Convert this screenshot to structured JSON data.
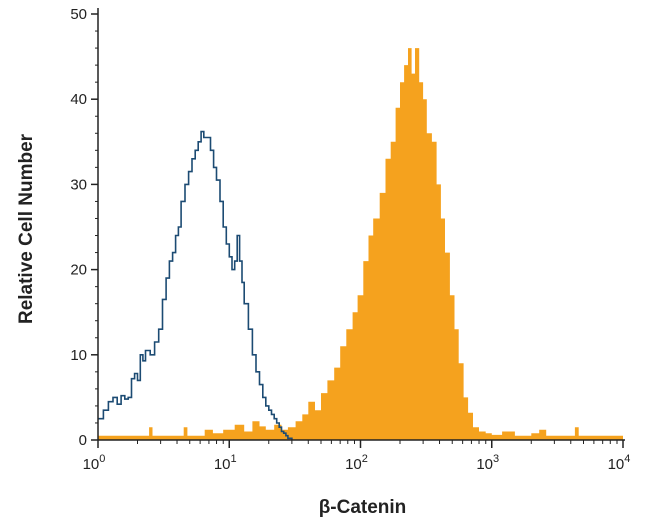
{
  "chart_data": {
    "type": "histogram",
    "xlabel": "β-Catenin",
    "ylabel": "Relative Cell Number",
    "x_scale": "log",
    "xlim": [
      1,
      10000
    ],
    "ylim": [
      0,
      50
    ],
    "x_ticks": [
      {
        "value": 1,
        "label": "10",
        "exp": "0"
      },
      {
        "value": 10,
        "label": "10",
        "exp": "1"
      },
      {
        "value": 100,
        "label": "10",
        "exp": "2"
      },
      {
        "value": 1000,
        "label": "10",
        "exp": "3"
      },
      {
        "value": 10000,
        "label": "10",
        "exp": "4"
      }
    ],
    "y_ticks": [
      0,
      10,
      20,
      30,
      40,
      50
    ],
    "grid": false,
    "legend": "none",
    "series": [
      {
        "style": "filled",
        "color": "#F5A21E",
        "points": [
          [
            1.0,
            0.5
          ],
          [
            2.3,
            0.5
          ],
          [
            2.45,
            1.5
          ],
          [
            2.6,
            0.5
          ],
          [
            4.3,
            0.5
          ],
          [
            4.5,
            1.5
          ],
          [
            4.8,
            0.5
          ],
          [
            6.5,
            1.2
          ],
          [
            7.5,
            0.8
          ],
          [
            9.0,
            1.2
          ],
          [
            11,
            1.8
          ],
          [
            13,
            1.0
          ],
          [
            15,
            2.2
          ],
          [
            17,
            1.6
          ],
          [
            19,
            1.2
          ],
          [
            22,
            1.8
          ],
          [
            25,
            1.2
          ],
          [
            28,
            1.5
          ],
          [
            32,
            2.2
          ],
          [
            36,
            3.0
          ],
          [
            40,
            4.5
          ],
          [
            45,
            3.5
          ],
          [
            50,
            5.5
          ],
          [
            56,
            7.0
          ],
          [
            63,
            8.5
          ],
          [
            70,
            11
          ],
          [
            78,
            13
          ],
          [
            87,
            15
          ],
          [
            95,
            17
          ],
          [
            105,
            21
          ],
          [
            115,
            24
          ],
          [
            125,
            26
          ],
          [
            140,
            29
          ],
          [
            155,
            33
          ],
          [
            170,
            35
          ],
          [
            185,
            39
          ],
          [
            200,
            42
          ],
          [
            215,
            44
          ],
          [
            230,
            46
          ],
          [
            245,
            43
          ],
          [
            260,
            46
          ],
          [
            280,
            42
          ],
          [
            300,
            40
          ],
          [
            320,
            36
          ],
          [
            350,
            35
          ],
          [
            380,
            30
          ],
          [
            410,
            26
          ],
          [
            440,
            22
          ],
          [
            480,
            17
          ],
          [
            520,
            13
          ],
          [
            560,
            9
          ],
          [
            610,
            5
          ],
          [
            660,
            3.2
          ],
          [
            720,
            1.5
          ],
          [
            800,
            1.0
          ],
          [
            900,
            0.8
          ],
          [
            1000,
            0.6
          ],
          [
            1200,
            1.0
          ],
          [
            1500,
            0.5
          ],
          [
            2000,
            0.8
          ],
          [
            2300,
            1.2
          ],
          [
            2600,
            0.5
          ],
          [
            3500,
            0.5
          ],
          [
            4300,
            1.5
          ],
          [
            4600,
            0.5
          ],
          [
            10000,
            0.3
          ]
        ]
      },
      {
        "style": "outline",
        "color": "#1C4B73",
        "points": [
          [
            1.0,
            2.5
          ],
          [
            1.1,
            3.5
          ],
          [
            1.2,
            4.5
          ],
          [
            1.3,
            5.0
          ],
          [
            1.4,
            4.2
          ],
          [
            1.5,
            5.2
          ],
          [
            1.6,
            4.8
          ],
          [
            1.7,
            5.0
          ],
          [
            1.8,
            7.2
          ],
          [
            1.9,
            7.8
          ],
          [
            2.0,
            7.0
          ],
          [
            2.1,
            10.0
          ],
          [
            2.2,
            9.3
          ],
          [
            2.3,
            10.5
          ],
          [
            2.5,
            10.0
          ],
          [
            2.7,
            11.5
          ],
          [
            2.9,
            13.0
          ],
          [
            3.1,
            16.5
          ],
          [
            3.3,
            19.0
          ],
          [
            3.5,
            21.0
          ],
          [
            3.7,
            22.0
          ],
          [
            3.9,
            24.0
          ],
          [
            4.1,
            25.0
          ],
          [
            4.3,
            28.0
          ],
          [
            4.6,
            30.0
          ],
          [
            4.9,
            31.5
          ],
          [
            5.2,
            33.0
          ],
          [
            5.5,
            34.0
          ],
          [
            5.8,
            35.0
          ],
          [
            6.1,
            36.2
          ],
          [
            6.4,
            35.5
          ],
          [
            6.8,
            35.5
          ],
          [
            7.2,
            34.0
          ],
          [
            7.6,
            32.0
          ],
          [
            8.0,
            30.5
          ],
          [
            8.5,
            28.0
          ],
          [
            9.0,
            25.0
          ],
          [
            9.5,
            23.0
          ],
          [
            10.0,
            21.5
          ],
          [
            10.5,
            20.0
          ],
          [
            11.0,
            21.0
          ],
          [
            11.5,
            24.0
          ],
          [
            12.0,
            21.0
          ],
          [
            12.5,
            18.5
          ],
          [
            13.0,
            16.0
          ],
          [
            14.0,
            13.0
          ],
          [
            15.0,
            10.0
          ],
          [
            16.0,
            8.0
          ],
          [
            17.0,
            6.5
          ],
          [
            18.0,
            5.0
          ],
          [
            19.0,
            4.0
          ],
          [
            20.0,
            3.5
          ],
          [
            21.0,
            3.0
          ],
          [
            22.0,
            2.5
          ],
          [
            23.0,
            2.0
          ],
          [
            24.0,
            1.5
          ],
          [
            25.0,
            1.0
          ],
          [
            26.0,
            0.8
          ],
          [
            27.0,
            0.5
          ],
          [
            28.0,
            0.2
          ],
          [
            30.0,
            0.0
          ]
        ]
      }
    ]
  }
}
